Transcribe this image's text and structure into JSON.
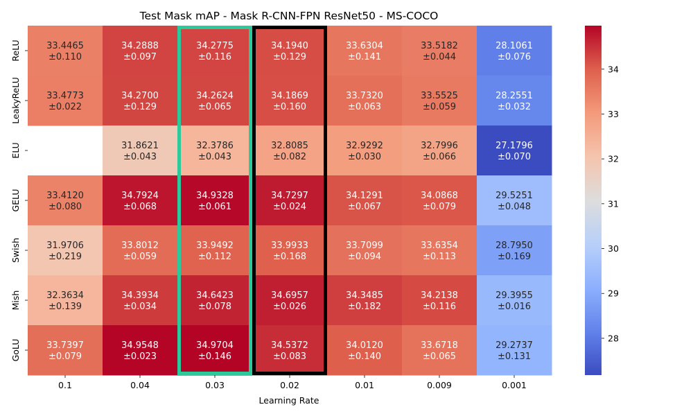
{
  "chart_data": {
    "type": "heatmap",
    "title": "Test Mask mAP - Mask R-CNN-FPN ResNet50 - MS-COCO",
    "xlabel": "Learning Rate",
    "ylabel": "",
    "x_categories": [
      "0.1",
      "0.04",
      "0.03",
      "0.02",
      "0.01",
      "0.009",
      "0.001"
    ],
    "y_categories": [
      "ReLU",
      "LeakyReLU",
      "ELU",
      "GELU",
      "Swish",
      "Mish",
      "GoLU"
    ],
    "values": [
      [
        33.4465,
        34.2888,
        34.2775,
        34.194,
        33.6304,
        33.5182,
        28.1061
      ],
      [
        33.4773,
        34.27,
        34.2624,
        34.1869,
        33.732,
        33.5525,
        28.2551
      ],
      [
        null,
        31.8621,
        32.3786,
        32.8085,
        32.9292,
        32.7996,
        27.1796
      ],
      [
        33.412,
        34.7924,
        34.9328,
        34.7297,
        34.1291,
        34.0868,
        29.5251
      ],
      [
        31.9706,
        33.8012,
        33.9492,
        33.9933,
        33.7099,
        33.6354,
        28.795
      ],
      [
        32.3634,
        34.3934,
        34.6423,
        34.6957,
        34.3485,
        34.2138,
        29.3955
      ],
      [
        33.7397,
        34.9548,
        34.9704,
        34.5372,
        34.012,
        33.6718,
        29.2737
      ]
    ],
    "errors": [
      [
        "±0.110",
        "±0.097",
        "±0.116",
        "±0.129",
        "±0.141",
        "±0.044",
        "±0.076"
      ],
      [
        "±0.022",
        "±0.129",
        "±0.065",
        "±0.160",
        "±0.063",
        "±0.059",
        "±0.032"
      ],
      [
        null,
        "±0.043",
        "±0.043",
        "±0.082",
        "±0.030",
        "±0.066",
        "±0.070"
      ],
      [
        "±0.080",
        "±0.068",
        "±0.061",
        "±0.024",
        "±0.067",
        "±0.079",
        "±0.048"
      ],
      [
        "±0.219",
        "±0.059",
        "±0.112",
        "±0.168",
        "±0.094",
        "±0.113",
        "±0.169"
      ],
      [
        "±0.139",
        "±0.034",
        "±0.078",
        "±0.026",
        "±0.182",
        "±0.116",
        "±0.016"
      ],
      [
        "±0.079",
        "±0.023",
        "±0.146",
        "±0.083",
        "±0.140",
        "±0.065",
        "±0.131"
      ]
    ],
    "colormap": "coolwarm",
    "vmin": 27.1796,
    "vmax": 34.9704,
    "colorbar_ticks": [
      28,
      29,
      30,
      31,
      32,
      33,
      34
    ],
    "highlight_columns": [
      {
        "category": "0.03",
        "color": "#2ec99a"
      },
      {
        "category": "0.02",
        "color": "#000000"
      }
    ]
  }
}
